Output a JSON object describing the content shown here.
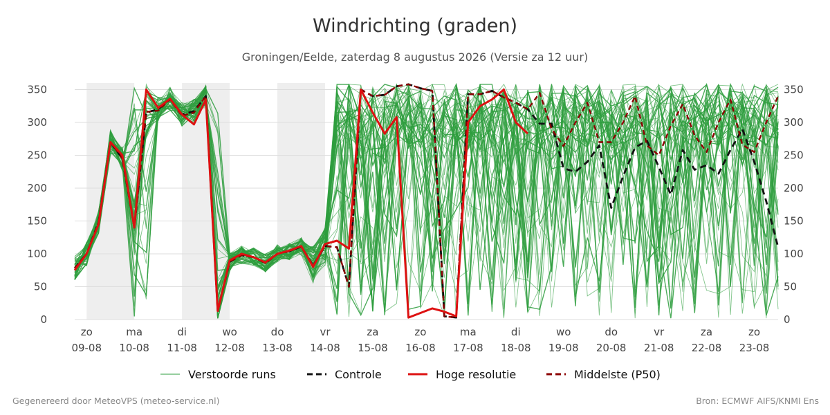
{
  "header": {
    "title": "Windrichting (graden)",
    "subtitle": "Groningen/Eelde, zaterdag  8 augustus 2026 (Versie za 12 uur)"
  },
  "footer": {
    "left": "Gegenereerd door MeteoVPS (meteo-service.nl)",
    "right": "Bron: ECMWF AIFS/KNMI Ens"
  },
  "colors": {
    "ensemble": "#2e9e3e",
    "control": "#111111",
    "high_res": "#dd1111",
    "median": "#8b0000",
    "night_band": "#eeeeee",
    "grid": "#dddddd"
  },
  "chart_data": {
    "type": "line",
    "xlabel": "",
    "ylabel": "",
    "ylim": [
      0,
      360
    ],
    "xlim": [
      -0.25,
      14.5
    ],
    "y_ticks": [
      0,
      50,
      100,
      150,
      200,
      250,
      300,
      350
    ],
    "x_ticks": [
      {
        "day": "zo",
        "date": "09-08"
      },
      {
        "day": "ma",
        "date": "10-08"
      },
      {
        "day": "di",
        "date": "11-08"
      },
      {
        "day": "wo",
        "date": "12-08"
      },
      {
        "day": "do",
        "date": "13-08"
      },
      {
        "day": "vr",
        "date": "14-08"
      },
      {
        "day": "za",
        "date": "15-08"
      },
      {
        "day": "zo",
        "date": "16-08"
      },
      {
        "day": "ma",
        "date": "17-08"
      },
      {
        "day": "di",
        "date": "18-08"
      },
      {
        "day": "wo",
        "date": "19-08"
      },
      {
        "day": "do",
        "date": "20-08"
      },
      {
        "day": "vr",
        "date": "21-08"
      },
      {
        "day": "za",
        "date": "22-08"
      },
      {
        "day": "zo",
        "date": "23-08"
      }
    ],
    "shaded_bands_days": [
      [
        0,
        1
      ],
      [
        2,
        3
      ],
      [
        4,
        5
      ]
    ],
    "grid": true,
    "legend_position": "bottom",
    "legend": [
      {
        "label": "Verstoorde runs",
        "style": "thin-solid",
        "color": "#2e9e3e"
      },
      {
        "label": "Controle",
        "style": "dashed",
        "color": "#111111"
      },
      {
        "label": "Hoge resolutie",
        "style": "solid",
        "color": "#dd1111"
      },
      {
        "label": "Middelste (P50)",
        "style": "dashed",
        "color": "#8b0000"
      }
    ],
    "series": [
      {
        "name": "Hoge resolutie",
        "x": [
          -0.25,
          0,
          0.25,
          0.5,
          0.75,
          1,
          1.25,
          1.5,
          1.75,
          2,
          2.25,
          2.5,
          2.75,
          3,
          3.25,
          3.5,
          3.75,
          4,
          4.25,
          4.5,
          4.75,
          5,
          5.25,
          5.5,
          5.75,
          6,
          6.25,
          6.5,
          6.75,
          7,
          7.25,
          7.5,
          7.75,
          8,
          8.25,
          8.5,
          8.75,
          9,
          9.25
        ],
        "values": [
          75,
          100,
          145,
          270,
          250,
          140,
          350,
          322,
          336,
          312,
          297,
          335,
          13,
          90,
          100,
          95,
          87,
          100,
          105,
          112,
          80,
          115,
          120,
          108,
          350,
          315,
          283,
          308,
          3,
          10,
          17,
          12,
          5,
          300,
          325,
          335,
          350,
          300,
          283
        ]
      },
      {
        "name": "Controle",
        "x": [
          -0.25,
          0,
          0.25,
          0.5,
          0.75,
          1,
          1.25,
          1.5,
          1.75,
          2,
          2.25,
          2.5,
          2.75,
          3,
          3.25,
          3.5,
          3.75,
          4,
          4.25,
          4.5,
          4.75,
          5,
          5.25,
          5.5,
          5.75,
          6,
          6.25,
          6.5,
          6.75,
          7,
          7.25,
          7.5,
          7.75,
          8,
          8.25,
          8.5,
          8.75,
          9,
          9.25,
          9.5,
          9.75,
          10,
          10.25,
          10.5,
          10.75,
          11,
          11.25,
          11.5,
          11.75,
          12,
          12.25,
          12.5,
          12.75,
          13,
          13.25,
          13.5,
          13.75,
          14,
          14.25,
          14.5
        ],
        "values": [
          78,
          100,
          148,
          270,
          245,
          140,
          315,
          320,
          336,
          312,
          317,
          340,
          13,
          88,
          98,
          95,
          86,
          100,
          104,
          111,
          82,
          112,
          110,
          50,
          350,
          340,
          342,
          355,
          358,
          352,
          348,
          5,
          3,
          343,
          343,
          348,
          338,
          330,
          320,
          298,
          298,
          230,
          225,
          240,
          265,
          170,
          218,
          262,
          272,
          232,
          190,
          258,
          228,
          235,
          222,
          258,
          290,
          240,
          180,
          110
        ]
      },
      {
        "name": "Middelste (P50)",
        "x": [
          -0.25,
          0,
          0.25,
          0.5,
          0.75,
          1,
          1.25,
          1.5,
          1.75,
          2,
          2.25,
          2.5,
          2.75,
          3,
          3.25,
          3.5,
          3.75,
          4,
          4.25,
          4.5,
          4.75,
          5,
          5.25,
          5.5,
          5.75,
          6,
          6.25,
          6.5,
          6.75,
          7,
          7.25,
          7.5,
          7.75,
          8,
          8.25,
          8.5,
          8.75,
          9,
          9.25,
          9.5,
          9.75,
          10,
          10.25,
          10.5,
          10.75,
          11,
          11.25,
          11.5,
          11.75,
          12,
          12.25,
          12.5,
          12.75,
          13,
          13.25,
          13.5,
          13.75,
          14,
          14.25,
          14.5
        ],
        "values": [
          78,
          100,
          148,
          270,
          245,
          140,
          316,
          318,
          335,
          310,
          315,
          340,
          13,
          88,
          98,
          95,
          86,
          100,
          104,
          111,
          82,
          112,
          110,
          50,
          350,
          340,
          342,
          355,
          358,
          352,
          348,
          5,
          3,
          343,
          343,
          348,
          338,
          330,
          320,
          345,
          290,
          264,
          300,
          330,
          270,
          270,
          300,
          340,
          265,
          250,
          295,
          328,
          280,
          255,
          300,
          335,
          266,
          255,
          300,
          340
        ]
      }
    ],
    "ensemble_member_count": 50
  }
}
